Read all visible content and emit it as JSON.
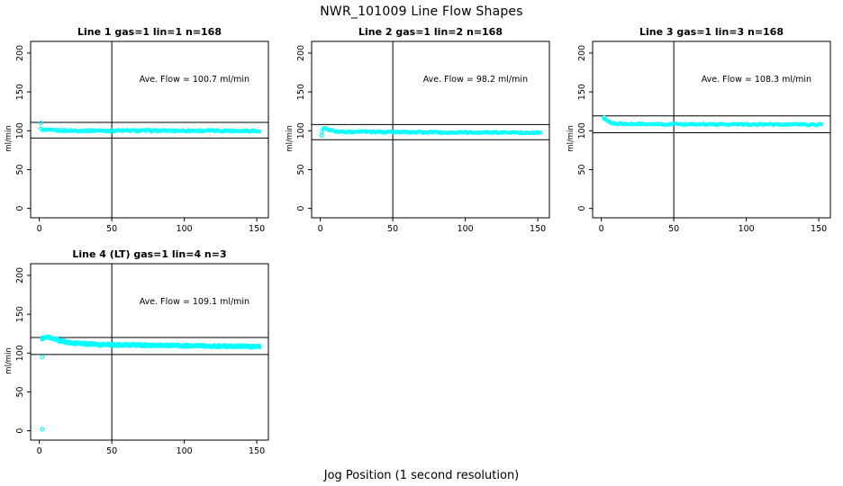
{
  "page_title": "NWR_101009  Line Flow Shapes",
  "xlabel": "Jog Position (1 second resolution)",
  "colors": {
    "points": "#00FFFF",
    "lines": "#000000",
    "text": "#000000",
    "bg": "#FFFFFF"
  },
  "chart_data": [
    {
      "type": "scatter",
      "title": "Line 1 gas=1 lin=1 n=168",
      "ave_flow": 100.7,
      "ave_flow_text": "Ave. Flow =  100.7  ml/min",
      "ylabel": "ml/min",
      "xticks": [
        0,
        50,
        100,
        150
      ],
      "yticks": [
        0,
        50,
        100,
        150,
        200
      ],
      "xlim": [
        -6,
        158
      ],
      "ylim": [
        -12,
        215
      ],
      "vline": 50,
      "hlines": [
        110.8,
        90.6
      ],
      "n": 168,
      "x_range": [
        1,
        152
      ],
      "trend": [
        [
          1,
          102.5
        ],
        [
          3,
          100.8
        ],
        [
          20,
          100.2
        ],
        [
          152,
          100
        ]
      ],
      "noise": 1.2,
      "passes": 1,
      "outliers": [
        [
          1,
          110
        ]
      ],
      "legend": "none",
      "grid": false
    },
    {
      "type": "scatter",
      "title": "Line 2 gas=1 lin=2 n=168",
      "ave_flow": 98.2,
      "ave_flow_text": "Ave. Flow =  98.2  ml/min",
      "ylabel": "ml/min",
      "xticks": [
        0,
        50,
        100,
        150
      ],
      "yticks": [
        0,
        50,
        100,
        150,
        200
      ],
      "xlim": [
        -6,
        158
      ],
      "ylim": [
        -12,
        215
      ],
      "vline": 50,
      "hlines": [
        108.0,
        88.4
      ],
      "n": 168,
      "x_range": [
        1,
        152
      ],
      "trend": [
        [
          1,
          99
        ],
        [
          2,
          103.5
        ],
        [
          5,
          102
        ],
        [
          12,
          98.8
        ],
        [
          80,
          98
        ],
        [
          152,
          97.6
        ]
      ],
      "noise": 1.0,
      "passes": 1,
      "outliers": [
        [
          1,
          94
        ]
      ],
      "legend": "none",
      "grid": false
    },
    {
      "type": "scatter",
      "title": "Line 3 gas=1 lin=3 n=168",
      "ave_flow": 108.3,
      "ave_flow_text": "Ave. Flow =  108.3  ml/min",
      "ylabel": "ml/min",
      "xticks": [
        0,
        50,
        100,
        150
      ],
      "yticks": [
        0,
        50,
        100,
        150,
        200
      ],
      "xlim": [
        -6,
        158
      ],
      "ylim": [
        -12,
        215
      ],
      "vline": 50,
      "hlines": [
        119.1,
        97.5
      ],
      "n": 168,
      "x_range": [
        2,
        152
      ],
      "trend": [
        [
          2,
          116
        ],
        [
          4,
          112.5
        ],
        [
          8,
          109.5
        ],
        [
          18,
          108.5
        ],
        [
          152,
          108
        ]
      ],
      "noise": 0.9,
      "passes": 1,
      "outliers": [
        [
          2,
          117
        ]
      ],
      "legend": "none",
      "grid": false
    },
    {
      "type": "scatter",
      "title": "Line 4 (LT) gas=1 lin=4 n=3",
      "ave_flow": 109.1,
      "ave_flow_text": "Ave. Flow =  109.1  ml/min",
      "ylabel": "ml/min",
      "xticks": [
        0,
        50,
        100,
        150
      ],
      "yticks": [
        0,
        50,
        100,
        150,
        200
      ],
      "xlim": [
        -6,
        158
      ],
      "ylim": [
        -12,
        215
      ],
      "vline": 50,
      "hlines": [
        120.0,
        98.2
      ],
      "n": 160,
      "x_range": [
        2,
        152
      ],
      "trend": [
        [
          2,
          119
        ],
        [
          5,
          121
        ],
        [
          9,
          119.5
        ],
        [
          15,
          115.5
        ],
        [
          25,
          112.5
        ],
        [
          40,
          111
        ],
        [
          75,
          110
        ],
        [
          120,
          109
        ],
        [
          152,
          108.5
        ]
      ],
      "noise": 1.6,
      "passes": 3,
      "outliers": [
        [
          2,
          95
        ],
        [
          2,
          2
        ]
      ],
      "legend": "none",
      "grid": false
    }
  ]
}
